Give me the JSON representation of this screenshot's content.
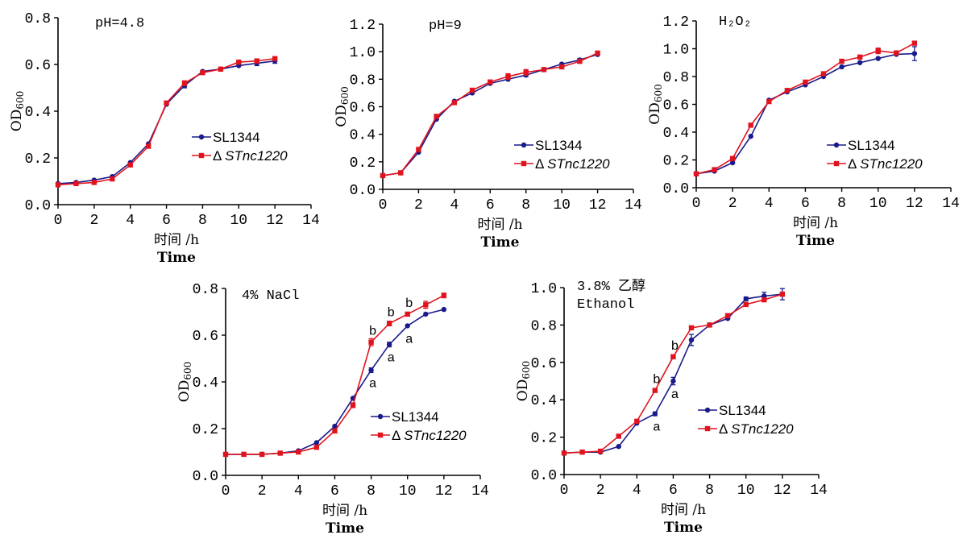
{
  "legend_labels": {
    "wt": "SL1344",
    "mut": "Δ STnc1220"
  },
  "colors": {
    "wt": "#1a1a8c",
    "mut": "#e0141e"
  },
  "chart_data": [
    {
      "type": "line",
      "annotation": "pH=4.8",
      "xlabel": "时间 /h",
      "xlabel2": "Time",
      "ylabel": "OD600",
      "xlim": [
        0,
        14
      ],
      "ylim": [
        0,
        0.8
      ],
      "xticks": [
        0,
        2,
        4,
        6,
        8,
        10,
        12,
        14
      ],
      "yticks": [
        0.0,
        0.2,
        0.4,
        0.6,
        0.8
      ],
      "ytick_labels": [
        "0.0",
        "0.2",
        "0.4",
        "0.6",
        "0.8"
      ],
      "grid": false,
      "legend_position": "lower-right",
      "series": [
        {
          "name": "SL1344",
          "x": [
            0,
            1,
            2,
            3,
            4,
            5,
            6,
            7,
            8,
            9,
            10,
            11,
            12
          ],
          "y": [
            0.09,
            0.095,
            0.105,
            0.12,
            0.18,
            0.26,
            0.43,
            0.51,
            0.57,
            0.58,
            0.595,
            0.605,
            0.615
          ],
          "err": [
            0,
            0,
            0,
            0,
            0,
            0,
            0,
            0.01,
            0,
            0,
            0,
            0.01,
            0.01
          ]
        },
        {
          "name": "Δ STnc1220",
          "x": [
            0,
            1,
            2,
            3,
            4,
            5,
            6,
            7,
            8,
            9,
            10,
            11,
            12
          ],
          "y": [
            0.085,
            0.09,
            0.095,
            0.11,
            0.17,
            0.25,
            0.435,
            0.52,
            0.565,
            0.58,
            0.61,
            0.615,
            0.625
          ],
          "err": [
            0,
            0,
            0,
            0,
            0,
            0,
            0,
            0.01,
            0,
            0,
            0,
            0,
            0
          ]
        }
      ],
      "significance": []
    },
    {
      "type": "line",
      "annotation": "pH=9",
      "xlabel": "时间 /h",
      "xlabel2": "Time",
      "ylabel": "OD600",
      "xlim": [
        0,
        14
      ],
      "ylim": [
        0,
        1.2
      ],
      "xticks": [
        0,
        2,
        4,
        6,
        8,
        10,
        12,
        14
      ],
      "yticks": [
        0.0,
        0.2,
        0.4,
        0.6,
        0.8,
        1.0,
        1.2
      ],
      "ytick_labels": [
        "0.0",
        "0.2",
        "0.4",
        "0.6",
        "0.8",
        "1.0",
        "1.2"
      ],
      "grid": false,
      "legend_position": "lower-right",
      "series": [
        {
          "name": "SL1344",
          "x": [
            0,
            1,
            2,
            3,
            4,
            5,
            6,
            7,
            8,
            9,
            10,
            11,
            12
          ],
          "y": [
            0.1,
            0.12,
            0.27,
            0.51,
            0.64,
            0.7,
            0.77,
            0.8,
            0.83,
            0.87,
            0.91,
            0.94,
            0.98
          ],
          "err": [
            0,
            0,
            0,
            0,
            0,
            0,
            0,
            0,
            0.01,
            0,
            0,
            0.01,
            0
          ]
        },
        {
          "name": "Δ STnc1220",
          "x": [
            0,
            1,
            2,
            3,
            4,
            5,
            6,
            7,
            8,
            9,
            10,
            11,
            12
          ],
          "y": [
            0.1,
            0.12,
            0.29,
            0.53,
            0.63,
            0.72,
            0.78,
            0.82,
            0.85,
            0.87,
            0.89,
            0.93,
            0.99
          ],
          "err": [
            0,
            0,
            0,
            0,
            0,
            0,
            0,
            0.02,
            0.02,
            0,
            0,
            0,
            0
          ]
        }
      ],
      "significance": []
    },
    {
      "type": "line",
      "annotation": "H₂O₂",
      "xlabel": "时间 /h",
      "xlabel2": "Time",
      "ylabel": "OD600",
      "xlim": [
        0,
        14
      ],
      "ylim": [
        0,
        1.2
      ],
      "xticks": [
        0,
        2,
        4,
        6,
        8,
        10,
        12,
        14
      ],
      "yticks": [
        0.0,
        0.2,
        0.4,
        0.6,
        0.8,
        1.0,
        1.2
      ],
      "ytick_labels": [
        "0.0",
        "0.2",
        "0.4",
        "0.6",
        "0.8",
        "1.0",
        "1.2"
      ],
      "grid": false,
      "legend_position": "lower-right",
      "series": [
        {
          "name": "SL1344",
          "x": [
            0,
            1,
            2,
            3,
            4,
            5,
            6,
            7,
            8,
            9,
            10,
            11,
            12
          ],
          "y": [
            0.1,
            0.12,
            0.18,
            0.37,
            0.63,
            0.69,
            0.74,
            0.8,
            0.87,
            0.9,
            0.93,
            0.96,
            0.965
          ],
          "err": [
            0,
            0,
            0,
            0,
            0,
            0,
            0,
            0,
            0,
            0,
            0,
            0,
            0.05
          ]
        },
        {
          "name": "Δ STnc1220",
          "x": [
            0,
            1,
            2,
            3,
            4,
            5,
            6,
            7,
            8,
            9,
            10,
            11,
            12
          ],
          "y": [
            0.1,
            0.13,
            0.21,
            0.45,
            0.62,
            0.7,
            0.76,
            0.82,
            0.91,
            0.94,
            0.985,
            0.97,
            1.04
          ],
          "err": [
            0,
            0,
            0,
            0,
            0,
            0,
            0,
            0,
            0,
            0,
            0.02,
            0,
            0
          ]
        }
      ],
      "significance": []
    },
    {
      "type": "line",
      "annotation": "4% NaCl",
      "xlabel": "时间 /h",
      "xlabel2": "Time",
      "ylabel": "OD600",
      "xlim": [
        0,
        14
      ],
      "ylim": [
        0,
        0.8
      ],
      "xticks": [
        0,
        2,
        4,
        6,
        8,
        10,
        12,
        14
      ],
      "yticks": [
        0.0,
        0.2,
        0.4,
        0.6,
        0.8
      ],
      "ytick_labels": [
        "0.0",
        "0.2",
        "0.4",
        "0.6",
        "0.8"
      ],
      "grid": false,
      "legend_position": "lower-right",
      "series": [
        {
          "name": "SL1344",
          "x": [
            0,
            1,
            2,
            3,
            4,
            5,
            6,
            7,
            8,
            9,
            10,
            11,
            12
          ],
          "y": [
            0.09,
            0.09,
            0.09,
            0.095,
            0.105,
            0.14,
            0.21,
            0.33,
            0.45,
            0.56,
            0.64,
            0.69,
            0.71
          ],
          "err": [
            0,
            0,
            0,
            0,
            0,
            0,
            0,
            0,
            0.01,
            0.01,
            0,
            0,
            0
          ]
        },
        {
          "name": "Δ STnc1220",
          "x": [
            0,
            1,
            2,
            3,
            4,
            5,
            6,
            7,
            8,
            9,
            10,
            11,
            12
          ],
          "y": [
            0.09,
            0.09,
            0.09,
            0.095,
            0.1,
            0.12,
            0.19,
            0.3,
            0.57,
            0.65,
            0.69,
            0.73,
            0.77
          ],
          "err": [
            0,
            0,
            0,
            0,
            0,
            0,
            0,
            0.01,
            0.015,
            0.01,
            0,
            0.015,
            0.01
          ]
        }
      ],
      "significance": [
        {
          "label": "b",
          "x": 8,
          "y": 0.57,
          "pos": "above"
        },
        {
          "label": "b",
          "x": 9,
          "y": 0.65,
          "pos": "above"
        },
        {
          "label": "b",
          "x": 10,
          "y": 0.69,
          "pos": "above"
        },
        {
          "label": "a",
          "x": 8,
          "y": 0.45,
          "pos": "below"
        },
        {
          "label": "a",
          "x": 9,
          "y": 0.56,
          "pos": "below"
        },
        {
          "label": "a",
          "x": 10,
          "y": 0.64,
          "pos": "below"
        }
      ]
    },
    {
      "type": "line",
      "annotation": "3.8% 乙醇",
      "annotation2": "Ethanol",
      "xlabel": "时间 /h",
      "xlabel2": "Time",
      "ylabel": "OD600",
      "xlim": [
        0,
        14
      ],
      "ylim": [
        0,
        1.0
      ],
      "xticks": [
        0,
        2,
        4,
        6,
        8,
        10,
        12,
        14
      ],
      "yticks": [
        0.0,
        0.2,
        0.4,
        0.6,
        0.8,
        1.0
      ],
      "ytick_labels": [
        "0.0",
        "0.2",
        "0.4",
        "0.6",
        "0.8",
        "1.0"
      ],
      "grid": false,
      "legend_position": "lower-right",
      "series": [
        {
          "name": "SL1344",
          "x": [
            0,
            1,
            2,
            3,
            4,
            5,
            6,
            7,
            8,
            9,
            10,
            11,
            12
          ],
          "y": [
            0.115,
            0.12,
            0.12,
            0.15,
            0.275,
            0.325,
            0.5,
            0.72,
            0.8,
            0.835,
            0.94,
            0.955,
            0.965
          ],
          "err": [
            0,
            0,
            0,
            0,
            0,
            0.01,
            0.02,
            0.03,
            0,
            0,
            0.01,
            0.02,
            0.03
          ]
        },
        {
          "name": "Δ STnc1220",
          "x": [
            0,
            1,
            2,
            3,
            4,
            5,
            6,
            7,
            8,
            9,
            10,
            11,
            12
          ],
          "y": [
            0.115,
            0.12,
            0.125,
            0.205,
            0.285,
            0.45,
            0.63,
            0.785,
            0.8,
            0.85,
            0.91,
            0.935,
            0.965
          ],
          "err": [
            0,
            0,
            0,
            0,
            0,
            0.01,
            0.01,
            0.01,
            0,
            0,
            0.01,
            0.01,
            0.01
          ]
        }
      ],
      "significance": [
        {
          "label": "b",
          "x": 5,
          "y": 0.45,
          "pos": "above"
        },
        {
          "label": "b",
          "x": 6,
          "y": 0.63,
          "pos": "above"
        },
        {
          "label": "a",
          "x": 5,
          "y": 0.325,
          "pos": "below"
        },
        {
          "label": "a",
          "x": 6,
          "y": 0.5,
          "pos": "below"
        }
      ]
    }
  ]
}
